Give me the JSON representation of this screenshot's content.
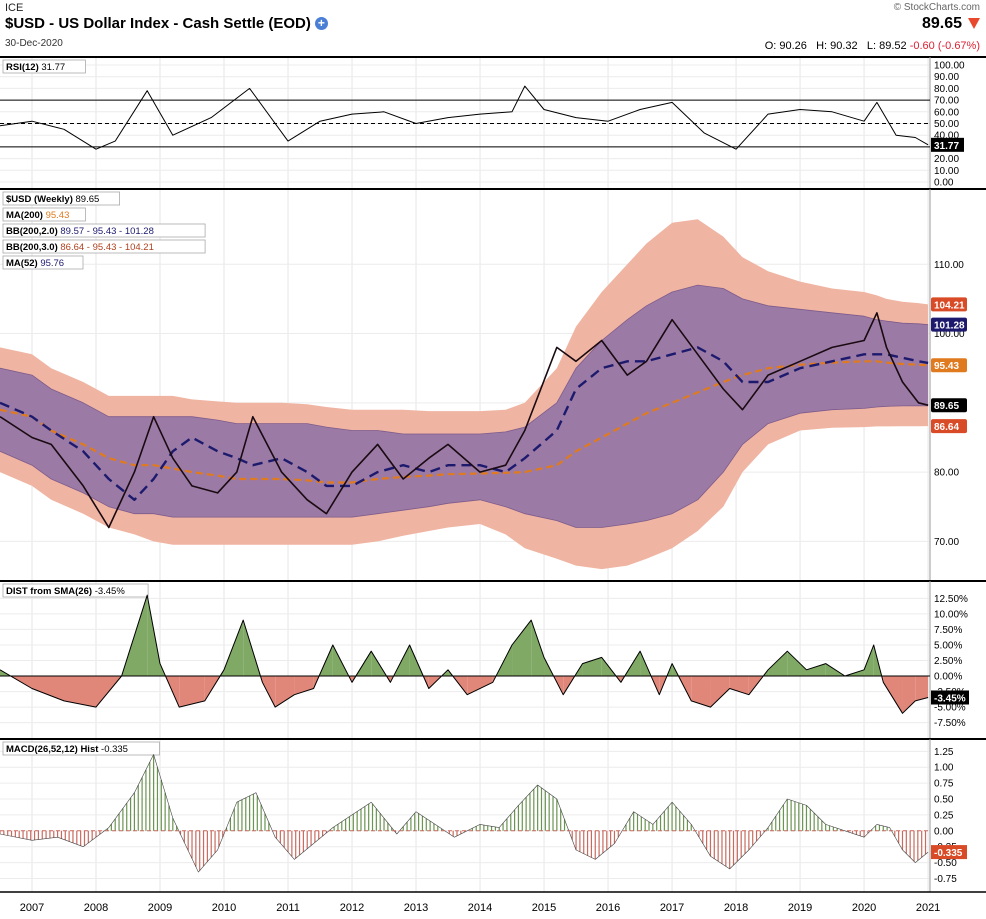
{
  "header": {
    "exchange": "ICE",
    "title": "$USD - US Dollar Index - Cash Settle (EOD)",
    "date": "30-Dec-2020",
    "source": "© StockCharts.com",
    "last_price": "89.65",
    "ohlc": {
      "o_label": "O:",
      "o": "90.26",
      "h_label": "H:",
      "h": "90.32",
      "l_label": "L:",
      "l": "89.52",
      "change": "-0.60 (-0.67%)"
    }
  },
  "colors": {
    "price": "#1a0a12",
    "ma200": "#e07a1f",
    "ma52": "#1d1a6e",
    "bb2": "#9b7ba5",
    "bb3": "#f0b4a2",
    "pos": "#7fa964",
    "neg": "#e0877a"
  },
  "x_axis": {
    "labels": [
      "2007",
      "2008",
      "2009",
      "2010",
      "2011",
      "2012",
      "2013",
      "2014",
      "2015",
      "2016",
      "2017",
      "2018",
      "2019",
      "2020",
      "2021"
    ]
  },
  "chart_data": [
    {
      "panel": "rsi",
      "type": "line",
      "legend": "RSI(12)",
      "legend_value": "31.77",
      "ylim": [
        0,
        100
      ],
      "ticks": [
        "100.00",
        "90.00",
        "80.00",
        "70.00",
        "60.00",
        "50.00",
        "40.00",
        "30.00",
        "20.00",
        "10.00",
        "0.00"
      ],
      "reference_lines": [
        70,
        50,
        30
      ],
      "x": [
        2006.5,
        2007,
        2007.5,
        2008,
        2008.3,
        2008.8,
        2009.2,
        2009.8,
        2010.4,
        2011,
        2011.5,
        2012,
        2012.5,
        2013,
        2013.5,
        2014,
        2014.5,
        2014.7,
        2015,
        2015.5,
        2016,
        2016.5,
        2017,
        2017.5,
        2018,
        2018.5,
        2019,
        2019.5,
        2020,
        2020.2,
        2020.5,
        2020.8,
        2021
      ],
      "values": [
        48,
        52,
        45,
        28,
        35,
        78,
        40,
        55,
        80,
        35,
        52,
        58,
        60,
        50,
        55,
        58,
        60,
        82,
        62,
        55,
        52,
        62,
        68,
        42,
        28,
        58,
        62,
        60,
        52,
        68,
        40,
        38,
        31.77
      ],
      "value_label": "31.77"
    },
    {
      "panel": "price",
      "type": "line",
      "legend": "$USD (Weekly)",
      "legend_value": "89.65",
      "ylim": [
        65,
        120
      ],
      "ticks": [
        "110.00",
        "100.00",
        "90.00",
        "80.00",
        "70.00"
      ],
      "series_legend": [
        {
          "label": "MA(200)",
          "value": "95.43"
        },
        {
          "label": "BB(200,2.0)",
          "value": "89.57 - 95.43 - 101.28"
        },
        {
          "label": "BB(200,3.0)",
          "value": "86.64 - 95.43 - 104.21"
        },
        {
          "label": "MA(52)",
          "value": "95.76"
        }
      ],
      "value_labels": [
        {
          "text": "104.21",
          "value": 104.21
        },
        {
          "text": "101.28",
          "value": 101.28
        },
        {
          "text": "95.43",
          "value": 95.43
        },
        {
          "text": "89.65",
          "value": 89.65
        },
        {
          "text": "86.64",
          "value": 86.64
        }
      ],
      "x": [
        2006.5,
        2007,
        2007.3,
        2007.8,
        2008.2,
        2008.6,
        2008.9,
        2009.2,
        2009.5,
        2009.9,
        2010.2,
        2010.45,
        2010.9,
        2011.3,
        2011.6,
        2012.0,
        2012.4,
        2012.8,
        2013.2,
        2013.5,
        2014.0,
        2014.4,
        2014.7,
        2015.2,
        2015.5,
        2015.9,
        2016.3,
        2016.6,
        2017.0,
        2017.4,
        2017.8,
        2018.1,
        2018.5,
        2019.0,
        2019.5,
        2020.0,
        2020.2,
        2020.35,
        2020.6,
        2020.85,
        2021.0
      ],
      "close": [
        88,
        85,
        84,
        78,
        72,
        80,
        88,
        82,
        78,
        77,
        80,
        88,
        80,
        76,
        74,
        80,
        84,
        79,
        82,
        84,
        80,
        81,
        86,
        98,
        96,
        99,
        94,
        96,
        102,
        97,
        92,
        89,
        94,
        96,
        98,
        99,
        103,
        98,
        93,
        90,
        89.65
      ],
      "ma200": [
        89,
        88,
        86,
        84,
        82,
        81,
        81,
        80.5,
        80,
        79.5,
        79,
        79,
        79,
        78.8,
        78.5,
        78.5,
        79,
        79.3,
        79.5,
        79.7,
        79.8,
        79.9,
        80,
        81,
        83,
        85,
        87,
        88.5,
        90,
        91.5,
        93,
        94,
        95,
        95.5,
        95.8,
        96,
        96,
        95.8,
        95.6,
        95.5,
        95.43
      ],
      "ma52": [
        90,
        88,
        86,
        83,
        79,
        76,
        79,
        83,
        85,
        83,
        82,
        81,
        82,
        80,
        78,
        78,
        80,
        81,
        80,
        81,
        81,
        80,
        82,
        86,
        92,
        95,
        96,
        96,
        97,
        98,
        96,
        93,
        93,
        95,
        96,
        97,
        97,
        97,
        96.5,
        96,
        95.76
      ],
      "bb2_upper": [
        95,
        94,
        92,
        90,
        88,
        88,
        88,
        88,
        88,
        87.5,
        87,
        87,
        87,
        87,
        86.5,
        86,
        86,
        85.5,
        85.5,
        85.5,
        85.5,
        85.8,
        86.5,
        90,
        95,
        99,
        102,
        104,
        106,
        107,
        106.5,
        105,
        104,
        103.5,
        103,
        102.5,
        102,
        101.8,
        101.5,
        101.4,
        101.28
      ],
      "bb2_lower": [
        83,
        81,
        79,
        77,
        75,
        74,
        74,
        73.5,
        73.5,
        73.5,
        73.5,
        73.5,
        73.5,
        73.5,
        73.5,
        73.5,
        74,
        74.5,
        75,
        75.5,
        76,
        75,
        74,
        73,
        72,
        72,
        72.5,
        73,
        74,
        76,
        80,
        84,
        87,
        88.5,
        89,
        89.2,
        89.4,
        89.5,
        89.55,
        89.57,
        89.57
      ],
      "bb3_upper": [
        98,
        97,
        95,
        93,
        91,
        91,
        91,
        91,
        90.5,
        90.2,
        90,
        90,
        90,
        89.8,
        89.4,
        89,
        89,
        89,
        88.8,
        88.8,
        88.8,
        89,
        90,
        95,
        101,
        106,
        110,
        113,
        116,
        116.5,
        114,
        111,
        109,
        107.5,
        106.5,
        106,
        105.5,
        105,
        104.6,
        104.4,
        104.21
      ],
      "bb3_lower": [
        80,
        78,
        76,
        74,
        72,
        71,
        70,
        69.5,
        69.5,
        69.5,
        69.5,
        69.5,
        69.5,
        69.5,
        69.5,
        69.5,
        70,
        70.8,
        71.5,
        72,
        72.5,
        71,
        69,
        67.5,
        66.5,
        66,
        66.5,
        67.5,
        69,
        71.5,
        75,
        80,
        84,
        86,
        86.4,
        86.5,
        86.6,
        86.6,
        86.62,
        86.63,
        86.64
      ]
    },
    {
      "panel": "dist",
      "type": "area",
      "legend": "DIST from SMA(26)",
      "legend_value": "-3.45%",
      "ylim": [
        -9,
        14
      ],
      "ticks": [
        "12.50%",
        "10.00%",
        "7.50%",
        "5.00%",
        "2.50%",
        "0.00%",
        "-2.50%",
        "-5.00%",
        "-7.50%"
      ],
      "x": [
        2006.5,
        2007,
        2007.5,
        2008,
        2008.4,
        2008.8,
        2009.0,
        2009.3,
        2009.7,
        2010.0,
        2010.3,
        2010.6,
        2010.8,
        2011.1,
        2011.4,
        2011.7,
        2012.0,
        2012.3,
        2012.6,
        2012.9,
        2013.2,
        2013.5,
        2013.8,
        2014.2,
        2014.5,
        2014.8,
        2015.0,
        2015.3,
        2015.6,
        2015.9,
        2016.2,
        2016.5,
        2016.8,
        2017.0,
        2017.3,
        2017.6,
        2017.9,
        2018.2,
        2018.5,
        2018.8,
        2019.1,
        2019.4,
        2019.7,
        2020.0,
        2020.15,
        2020.3,
        2020.6,
        2020.8,
        2021.0
      ],
      "values": [
        1,
        -2,
        -4,
        -5,
        0,
        13,
        2,
        -5,
        -4,
        1,
        9,
        -1,
        -5,
        -3,
        -2,
        5,
        -1,
        4,
        -1,
        5,
        -2,
        1,
        -3,
        -1,
        5,
        9,
        3,
        -3,
        2,
        3,
        -1,
        4,
        -3,
        2,
        -4,
        -5,
        -2,
        -3,
        1,
        4,
        1,
        2,
        0,
        1,
        5,
        -1,
        -6,
        -4,
        -3.45
      ],
      "value_label": "-3.45%"
    },
    {
      "panel": "macd_hist",
      "type": "bar",
      "legend": "MACD(26,52,12) Hist",
      "legend_value": "-0.335",
      "ylim": [
        -0.9,
        1.35
      ],
      "ticks": [
        "1.25",
        "1.00",
        "0.75",
        "0.50",
        "0.25",
        "0.00",
        "-0.25",
        "-0.50",
        "-0.75"
      ],
      "x": [
        2006.5,
        2007,
        2007.4,
        2007.8,
        2008.2,
        2008.6,
        2008.9,
        2009.2,
        2009.6,
        2009.9,
        2010.2,
        2010.5,
        2010.8,
        2011.1,
        2011.4,
        2011.7,
        2012.0,
        2012.3,
        2012.7,
        2013.0,
        2013.3,
        2013.6,
        2014.0,
        2014.3,
        2014.6,
        2014.9,
        2015.2,
        2015.5,
        2015.8,
        2016.1,
        2016.4,
        2016.7,
        2017.0,
        2017.3,
        2017.6,
        2017.9,
        2018.2,
        2018.5,
        2018.8,
        2019.1,
        2019.4,
        2019.7,
        2020.0,
        2020.2,
        2020.4,
        2020.6,
        2020.8,
        2021.0
      ],
      "values": [
        -0.05,
        -0.15,
        -0.1,
        -0.25,
        0.05,
        0.6,
        1.2,
        0.2,
        -0.65,
        -0.3,
        0.45,
        0.6,
        -0.1,
        -0.45,
        -0.2,
        0.05,
        0.25,
        0.45,
        -0.05,
        0.3,
        0.1,
        -0.1,
        0.1,
        0.05,
        0.4,
        0.72,
        0.5,
        -0.3,
        -0.45,
        -0.2,
        0.3,
        0.1,
        0.45,
        0.1,
        -0.4,
        -0.6,
        -0.3,
        0.05,
        0.5,
        0.4,
        0.1,
        0.0,
        -0.1,
        0.1,
        0.05,
        -0.3,
        -0.5,
        -0.335
      ],
      "value_label": "-0.335"
    }
  ]
}
